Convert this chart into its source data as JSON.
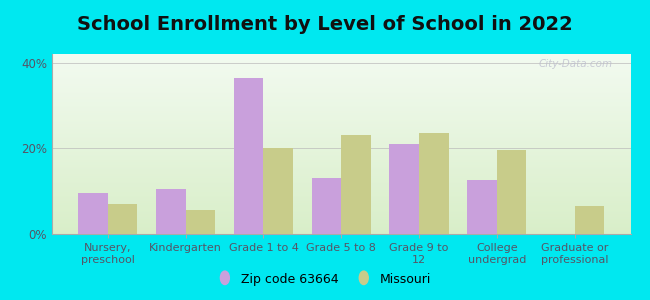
{
  "title": "School Enrollment by Level of School in 2022",
  "categories": [
    "Nursery,\npreschool",
    "Kindergarten",
    "Grade 1 to 4",
    "Grade 5 to 8",
    "Grade 9 to\n12",
    "College\nundergrad",
    "Graduate or\nprofessional"
  ],
  "zip_values": [
    9.5,
    10.5,
    36.5,
    13.0,
    21.0,
    12.5,
    0.0
  ],
  "mo_values": [
    7.0,
    5.5,
    20.0,
    23.0,
    23.5,
    19.5,
    6.5
  ],
  "zip_color": "#c9a0dc",
  "mo_color": "#c8cc8a",
  "background_outer": "#00e8f0",
  "grad_top": "#f2faf0",
  "grad_bottom": "#d8eec8",
  "ylim": [
    0,
    42
  ],
  "yticks": [
    0,
    20,
    40
  ],
  "ytick_labels": [
    "0%",
    "20%",
    "40%"
  ],
  "legend_zip_label": "Zip code 63664",
  "legend_mo_label": "Missouri",
  "watermark": "City-Data.com",
  "title_fontsize": 14,
  "bar_width": 0.38,
  "tick_fontsize": 8.5,
  "label_color": "#555566"
}
